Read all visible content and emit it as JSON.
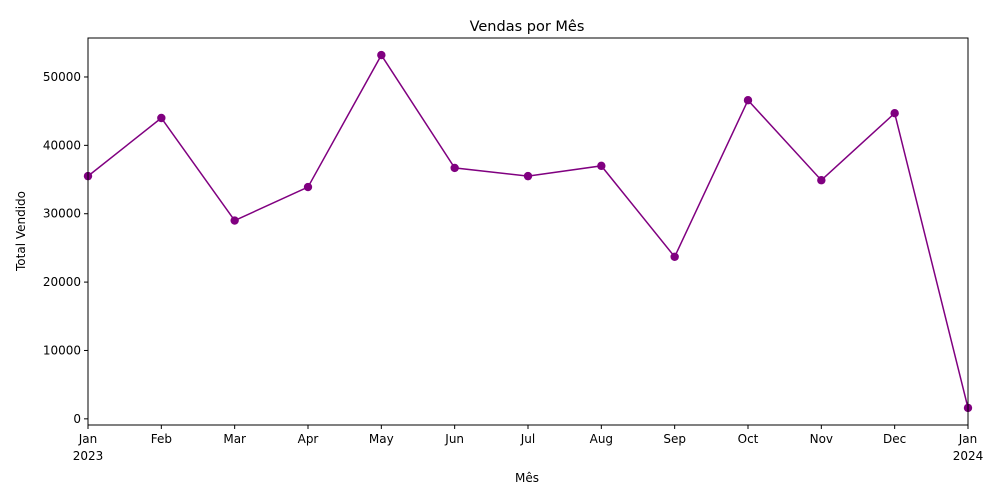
{
  "chart_data": {
    "type": "line",
    "title": "Vendas por Mês",
    "xlabel": "Mês",
    "ylabel": "Total Vendido",
    "x": [
      "2023-01",
      "2023-02",
      "2023-03",
      "2023-04",
      "2023-05",
      "2023-06",
      "2023-07",
      "2023-08",
      "2023-09",
      "2023-10",
      "2023-11",
      "2023-12",
      "2024-01"
    ],
    "x_tick_labels": [
      {
        "month": "Jan",
        "year": "2023"
      },
      {
        "month": "Feb",
        "year": ""
      },
      {
        "month": "Mar",
        "year": ""
      },
      {
        "month": "Apr",
        "year": ""
      },
      {
        "month": "May",
        "year": ""
      },
      {
        "month": "Jun",
        "year": ""
      },
      {
        "month": "Jul",
        "year": ""
      },
      {
        "month": "Aug",
        "year": ""
      },
      {
        "month": "Sep",
        "year": ""
      },
      {
        "month": "Oct",
        "year": ""
      },
      {
        "month": "Nov",
        "year": ""
      },
      {
        "month": "Dec",
        "year": ""
      },
      {
        "month": "Jan",
        "year": "2024"
      }
    ],
    "series": [
      {
        "values": [
          35500,
          44000,
          29000,
          33900,
          53200,
          36700,
          35500,
          37000,
          23700,
          46600,
          34900,
          44700,
          1600
        ],
        "color": "#800080",
        "marker": "circle"
      }
    ],
    "ylim": [
      -900,
      55700
    ],
    "y_ticks": [
      0,
      10000,
      20000,
      30000,
      40000,
      50000
    ],
    "grid": false,
    "legend": "none"
  }
}
